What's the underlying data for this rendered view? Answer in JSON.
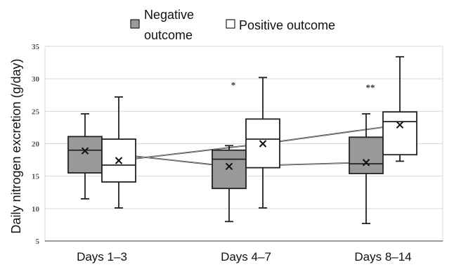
{
  "chart_data": {
    "type": "box",
    "ylabel": "Daily nitrogen excretion (g/day)",
    "xlabel": "",
    "ylim": [
      5,
      35
    ],
    "yticks": [
      5,
      10,
      15,
      20,
      25,
      30,
      35
    ],
    "grid": true,
    "legend_position": "top",
    "categories": [
      "Days 1–3",
      "Days 4–7",
      "Days 8–14"
    ],
    "series": [
      {
        "name": "Negative outcome",
        "color": "#999999",
        "boxes": [
          {
            "whisker_low": 11.5,
            "q1": 15.5,
            "median": 19.0,
            "q3": 21.1,
            "whisker_high": 24.6,
            "mean": 18.9
          },
          {
            "whisker_low": 8.0,
            "q1": 13.1,
            "median": 17.6,
            "q3": 19.0,
            "whisker_high": 19.7,
            "mean": 16.5
          },
          {
            "whisker_low": 7.7,
            "q1": 15.4,
            "median": 16.9,
            "q3": 21.0,
            "whisker_high": 24.6,
            "mean": 17.1
          }
        ]
      },
      {
        "name": "Positive outcome",
        "color": "#ffffff",
        "boxes": [
          {
            "whisker_low": 10.1,
            "q1": 14.1,
            "median": 16.7,
            "q3": 20.7,
            "whisker_high": 27.2,
            "mean": 17.4
          },
          {
            "whisker_low": 10.1,
            "q1": 16.3,
            "median": 20.7,
            "q3": 23.8,
            "whisker_high": 30.2,
            "mean": 20.0
          },
          {
            "whisker_low": 17.3,
            "q1": 18.3,
            "median": 23.4,
            "q3": 24.9,
            "whisker_high": 33.4,
            "mean": 22.9
          }
        ]
      }
    ],
    "annotations": [
      {
        "category_index": 1,
        "text": "*",
        "y": 29.0
      },
      {
        "category_index": 2,
        "text": "**",
        "y": 28.6
      }
    ]
  }
}
